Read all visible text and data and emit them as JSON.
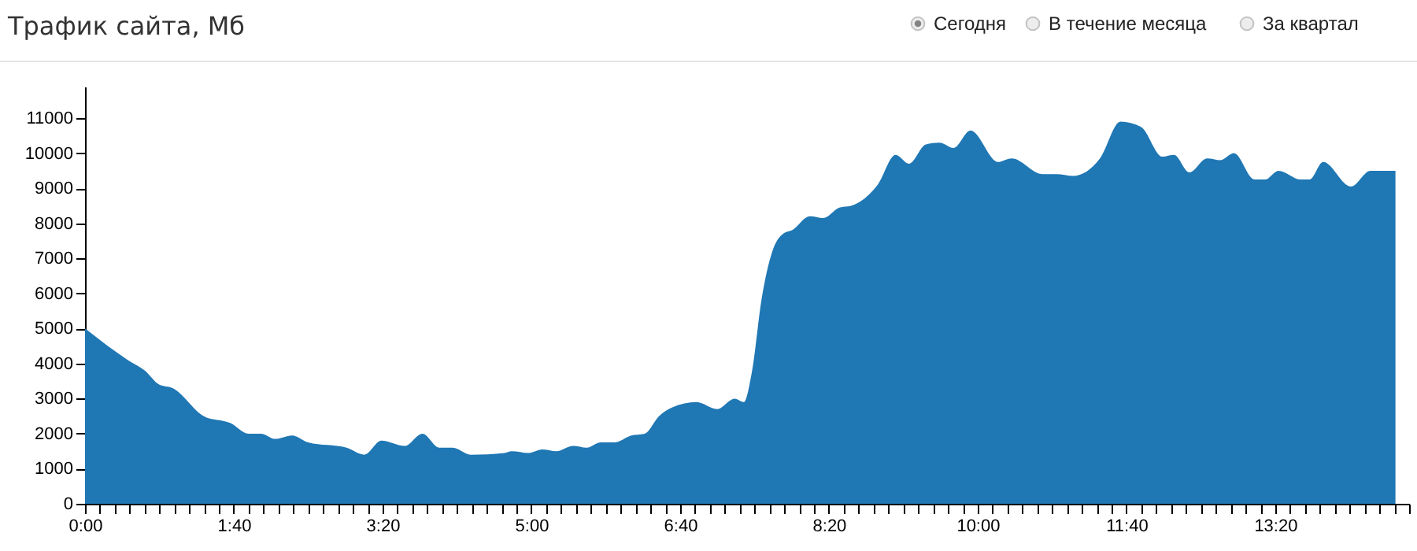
{
  "chart_data": {
    "type": "area",
    "title": "Трафик сайта, Мб",
    "annotations": [
      "Сегодня",
      "В течение месяца",
      "За квартал"
    ],
    "x": [
      0,
      0.48,
      0.67,
      0.83,
      0.98,
      1.33,
      1.63,
      1.83,
      1.97,
      2.13,
      2.32,
      2.5,
      2.93,
      3.13,
      3.32,
      3.58,
      3.78,
      3.97,
      4.12,
      4.32,
      4.7,
      4.78,
      4.97,
      5.12,
      5.28,
      5.47,
      5.62,
      5.78,
      5.93,
      6.12,
      6.27,
      6.43,
      6.58,
      6.85,
      7.08,
      7.28,
      7.38,
      7.47,
      7.58,
      7.7,
      7.82,
      7.92,
      8.12,
      8.27,
      8.45,
      8.58,
      8.88,
      9.08,
      9.23,
      9.42,
      9.57,
      9.73,
      9.92,
      10.23,
      10.38,
      10.73,
      10.88,
      11.07,
      11.37,
      11.6,
      11.83,
      12.07,
      12.2,
      12.37,
      12.57,
      12.72,
      12.87,
      13.1,
      13.22,
      13.37,
      13.62,
      13.72,
      13.87,
      14.18,
      14.4,
      14.68
    ],
    "values": [
      5000,
      4100,
      3800,
      3400,
      3300,
      2500,
      2300,
      2000,
      2000,
      1850,
      1950,
      1750,
      1600,
      1400,
      1800,
      1650,
      2000,
      1600,
      1600,
      1400,
      1450,
      1500,
      1450,
      1550,
      1500,
      1650,
      1600,
      1750,
      1750,
      1950,
      2000,
      2500,
      2750,
      2900,
      2700,
      3000,
      2900,
      3750,
      5850,
      7200,
      7700,
      7800,
      8200,
      8150,
      8450,
      8500,
      9100,
      9950,
      9700,
      10250,
      10300,
      10150,
      10650,
      9750,
      9850,
      9400,
      9400,
      9350,
      9850,
      10900,
      10750,
      9900,
      9950,
      9450,
      9850,
      9800,
      10000,
      9250,
      9250,
      9500,
      9250,
      9250,
      9750,
      9050,
      9500,
      9500
    ],
    "color": "#1f77b4",
    "xlim": [
      0,
      14.8333
    ],
    "ylim": [
      0,
      11900
    ],
    "yticks": [
      0,
      1000,
      2000,
      3000,
      4000,
      5000,
      6000,
      7000,
      8000,
      9000,
      10000,
      11000
    ],
    "xticks": [
      {
        "value": 0,
        "label": "0:00"
      },
      {
        "value": 0.1667,
        "label": null
      },
      {
        "value": 0.3333,
        "label": null
      },
      {
        "value": 0.5,
        "label": null
      },
      {
        "value": 0.6667,
        "label": null
      },
      {
        "value": 0.8333,
        "label": null
      },
      {
        "value": 1,
        "label": null
      },
      {
        "value": 1.1667,
        "label": null
      },
      {
        "value": 1.3333,
        "label": null
      },
      {
        "value": 1.5,
        "label": null
      },
      {
        "value": 1.6667,
        "label": "1:40"
      },
      {
        "value": 1.8333,
        "label": null
      },
      {
        "value": 2,
        "label": null
      },
      {
        "value": 2.1667,
        "label": null
      },
      {
        "value": 2.3333,
        "label": null
      },
      {
        "value": 2.5,
        "label": null
      },
      {
        "value": 2.6667,
        "label": null
      },
      {
        "value": 2.8333,
        "label": null
      },
      {
        "value": 3,
        "label": null
      },
      {
        "value": 3.1667,
        "label": null
      },
      {
        "value": 3.3333,
        "label": "3:20"
      },
      {
        "value": 3.5,
        "label": null
      },
      {
        "value": 3.6667,
        "label": null
      },
      {
        "value": 3.8333,
        "label": null
      },
      {
        "value": 4,
        "label": null
      },
      {
        "value": 4.1667,
        "label": null
      },
      {
        "value": 4.3333,
        "label": null
      },
      {
        "value": 4.5,
        "label": null
      },
      {
        "value": 4.6667,
        "label": null
      },
      {
        "value": 4.8333,
        "label": null
      },
      {
        "value": 5,
        "label": "5:00"
      },
      {
        "value": 5.1667,
        "label": null
      },
      {
        "value": 5.3333,
        "label": null
      },
      {
        "value": 5.5,
        "label": null
      },
      {
        "value": 5.6667,
        "label": null
      },
      {
        "value": 5.8333,
        "label": null
      },
      {
        "value": 6,
        "label": null
      },
      {
        "value": 6.1667,
        "label": null
      },
      {
        "value": 6.3333,
        "label": null
      },
      {
        "value": 6.5,
        "label": null
      },
      {
        "value": 6.6667,
        "label": "6:40"
      },
      {
        "value": 6.8333,
        "label": null
      },
      {
        "value": 7,
        "label": null
      },
      {
        "value": 7.1667,
        "label": null
      },
      {
        "value": 7.3333,
        "label": null
      },
      {
        "value": 7.5,
        "label": null
      },
      {
        "value": 7.6667,
        "label": null
      },
      {
        "value": 7.8333,
        "label": null
      },
      {
        "value": 8,
        "label": null
      },
      {
        "value": 8.1667,
        "label": null
      },
      {
        "value": 8.3333,
        "label": "8:20"
      },
      {
        "value": 8.5,
        "label": null
      },
      {
        "value": 8.6667,
        "label": null
      },
      {
        "value": 8.8333,
        "label": null
      },
      {
        "value": 9,
        "label": null
      },
      {
        "value": 9.1667,
        "label": null
      },
      {
        "value": 9.3333,
        "label": null
      },
      {
        "value": 9.5,
        "label": null
      },
      {
        "value": 9.6667,
        "label": null
      },
      {
        "value": 9.8333,
        "label": null
      },
      {
        "value": 10,
        "label": "10:00"
      },
      {
        "value": 10.1667,
        "label": null
      },
      {
        "value": 10.3333,
        "label": null
      },
      {
        "value": 10.5,
        "label": null
      },
      {
        "value": 10.6667,
        "label": null
      },
      {
        "value": 10.8333,
        "label": null
      },
      {
        "value": 11,
        "label": null
      },
      {
        "value": 11.1667,
        "label": null
      },
      {
        "value": 11.3333,
        "label": null
      },
      {
        "value": 11.5,
        "label": null
      },
      {
        "value": 11.6667,
        "label": "11:40"
      },
      {
        "value": 11.8333,
        "label": null
      },
      {
        "value": 12,
        "label": null
      },
      {
        "value": 12.1667,
        "label": null
      },
      {
        "value": 12.3333,
        "label": null
      },
      {
        "value": 12.5,
        "label": null
      },
      {
        "value": 12.6667,
        "label": null
      },
      {
        "value": 12.8333,
        "label": null
      },
      {
        "value": 13,
        "label": null
      },
      {
        "value": 13.1667,
        "label": null
      },
      {
        "value": 13.3333,
        "label": "13:20"
      },
      {
        "value": 13.5,
        "label": null
      },
      {
        "value": 13.6667,
        "label": null
      },
      {
        "value": 13.8333,
        "label": null
      },
      {
        "value": 14,
        "label": null
      },
      {
        "value": 14.1667,
        "label": null
      },
      {
        "value": 14.3333,
        "label": null
      },
      {
        "value": 14.5,
        "label": null
      },
      {
        "value": 14.6667,
        "label": null
      },
      {
        "value": 14.8333,
        "label": null
      }
    ],
    "grid": false
  }
}
